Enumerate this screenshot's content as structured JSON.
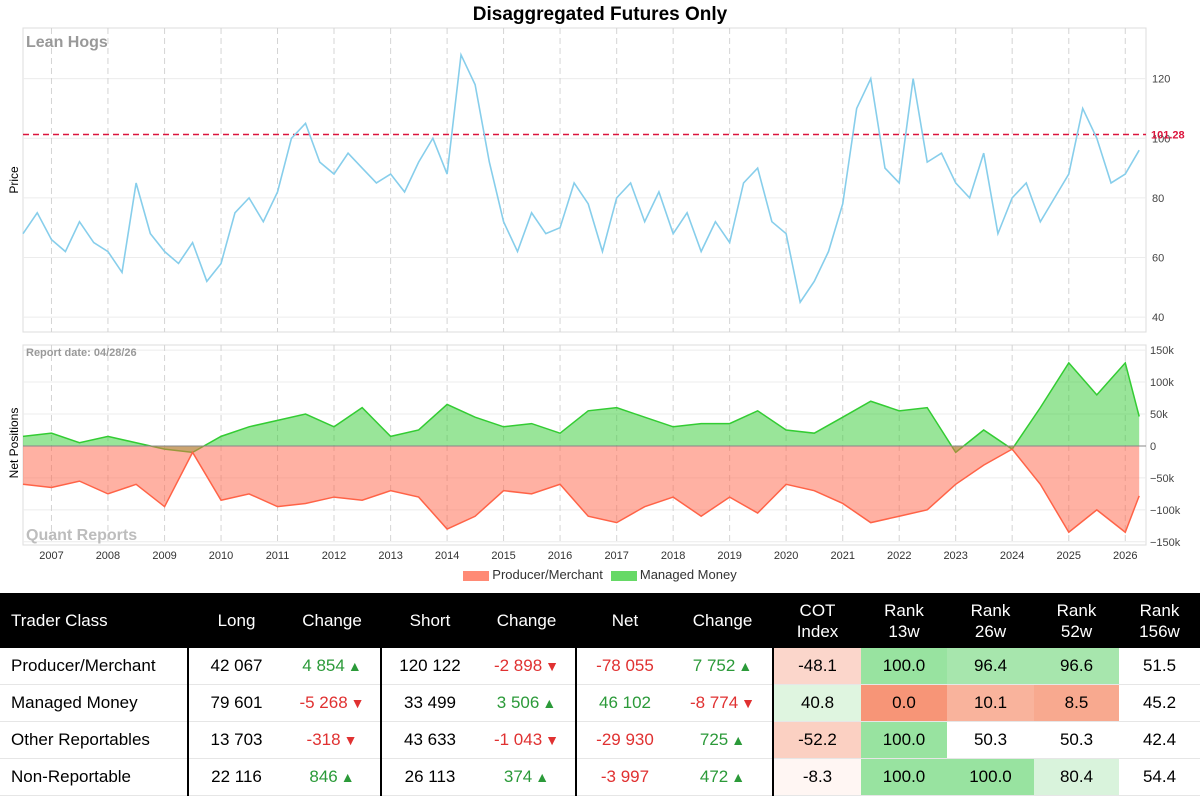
{
  "title": "Disaggregated Futures Only",
  "chart_data": [
    {
      "type": "line",
      "label": "Lean Hogs",
      "ylabel": "Price",
      "x_range": [
        "2006-07-01",
        "2026-05-15"
      ],
      "ylim": [
        35,
        137
      ],
      "y_ticks": [
        40,
        60,
        80,
        100,
        120
      ],
      "grid": true,
      "reference_line": {
        "value": 101.28,
        "label": "101.28",
        "color": "#dc143c",
        "style": "dashed"
      },
      "series": [
        {
          "color": "#87ceeb",
          "x": [
            "2006-07",
            "2006-10",
            "2007-01",
            "2007-04",
            "2007-07",
            "2007-10",
            "2008-01",
            "2008-04",
            "2008-07",
            "2008-10",
            "2009-01",
            "2009-04",
            "2009-07",
            "2009-10",
            "2010-01",
            "2010-04",
            "2010-07",
            "2010-10",
            "2011-01",
            "2011-04",
            "2011-07",
            "2011-10",
            "2012-01",
            "2012-04",
            "2012-07",
            "2012-10",
            "2013-01",
            "2013-04",
            "2013-07",
            "2013-10",
            "2014-01",
            "2014-04",
            "2014-07",
            "2014-10",
            "2015-01",
            "2015-04",
            "2015-07",
            "2015-10",
            "2016-01",
            "2016-04",
            "2016-07",
            "2016-10",
            "2017-01",
            "2017-04",
            "2017-07",
            "2017-10",
            "2018-01",
            "2018-04",
            "2018-07",
            "2018-10",
            "2019-01",
            "2019-04",
            "2019-07",
            "2019-10",
            "2020-01",
            "2020-04",
            "2020-07",
            "2020-10",
            "2021-01",
            "2021-04",
            "2021-07",
            "2021-10",
            "2022-01",
            "2022-04",
            "2022-07",
            "2022-10",
            "2023-01",
            "2023-04",
            "2023-07",
            "2023-10",
            "2024-01",
            "2024-04",
            "2024-07",
            "2024-10",
            "2025-01",
            "2025-04",
            "2025-07",
            "2025-10",
            "2026-01",
            "2026-04"
          ],
          "y": [
            68,
            75,
            66,
            62,
            72,
            65,
            62,
            55,
            85,
            68,
            62,
            58,
            65,
            52,
            58,
            75,
            80,
            72,
            82,
            100,
            105,
            92,
            88,
            95,
            90,
            85,
            88,
            82,
            92,
            100,
            88,
            128,
            118,
            92,
            72,
            62,
            75,
            68,
            70,
            85,
            78,
            62,
            80,
            85,
            72,
            82,
            68,
            75,
            62,
            72,
            65,
            85,
            90,
            72,
            68,
            45,
            52,
            62,
            78,
            110,
            120,
            90,
            85,
            120,
            92,
            95,
            85,
            80,
            95,
            68,
            80,
            85,
            72,
            80,
            88,
            110,
            100,
            85,
            88,
            96
          ]
        }
      ]
    },
    {
      "type": "area",
      "ylabel": "Net Positions",
      "annotation": "Report date: 04/28/26",
      "watermark": "Quant Reports",
      "x_range": [
        "2006-07-01",
        "2026-05-15"
      ],
      "x_ticks": [
        "2007",
        "2008",
        "2009",
        "2010",
        "2011",
        "2012",
        "2013",
        "2014",
        "2015",
        "2016",
        "2017",
        "2018",
        "2019",
        "2020",
        "2021",
        "2022",
        "2023",
        "2024",
        "2025",
        "2026"
      ],
      "ylim": [
        -155000,
        158000
      ],
      "y_ticks": [
        -150000,
        -100000,
        -50000,
        0,
        50000,
        100000,
        150000
      ],
      "y_tick_labels": [
        "−150k",
        "−100k",
        "−50k",
        "0",
        "50k",
        "100k",
        "150k"
      ],
      "grid": true,
      "legend_position": "bottom-center",
      "series": [
        {
          "name": "Managed Money",
          "color": "#33cc33",
          "x": [
            "2006-07",
            "2007-01",
            "2007-07",
            "2008-01",
            "2008-07",
            "2009-01",
            "2009-07",
            "2010-01",
            "2010-07",
            "2011-01",
            "2011-07",
            "2012-01",
            "2012-07",
            "2013-01",
            "2013-07",
            "2014-01",
            "2014-07",
            "2015-01",
            "2015-07",
            "2016-01",
            "2016-07",
            "2017-01",
            "2017-07",
            "2018-01",
            "2018-07",
            "2019-01",
            "2019-07",
            "2020-01",
            "2020-07",
            "2021-01",
            "2021-07",
            "2022-01",
            "2022-07",
            "2023-01",
            "2023-07",
            "2024-01",
            "2024-07",
            "2025-01",
            "2025-07",
            "2026-01",
            "2026-04"
          ],
          "y": [
            15000,
            20000,
            5000,
            15000,
            5000,
            -5000,
            -10000,
            15000,
            30000,
            40000,
            50000,
            30000,
            60000,
            15000,
            25000,
            65000,
            45000,
            30000,
            35000,
            20000,
            55000,
            60000,
            45000,
            30000,
            35000,
            35000,
            55000,
            25000,
            20000,
            45000,
            70000,
            55000,
            60000,
            -10000,
            25000,
            -5000,
            60000,
            130000,
            80000,
            130000,
            46102
          ]
        },
        {
          "name": "Producer/Merchant",
          "color": "#ff6347",
          "x": [
            "2006-07",
            "2007-01",
            "2007-07",
            "2008-01",
            "2008-07",
            "2009-01",
            "2009-07",
            "2010-01",
            "2010-07",
            "2011-01",
            "2011-07",
            "2012-01",
            "2012-07",
            "2013-01",
            "2013-07",
            "2014-01",
            "2014-07",
            "2015-01",
            "2015-07",
            "2016-01",
            "2016-07",
            "2017-01",
            "2017-07",
            "2018-01",
            "2018-07",
            "2019-01",
            "2019-07",
            "2020-01",
            "2020-07",
            "2021-01",
            "2021-07",
            "2022-01",
            "2022-07",
            "2023-01",
            "2023-07",
            "2024-01",
            "2024-07",
            "2025-01",
            "2025-07",
            "2026-01",
            "2026-04"
          ],
          "y": [
            -60000,
            -65000,
            -55000,
            -75000,
            -60000,
            -95000,
            -10000,
            -85000,
            -75000,
            -95000,
            -90000,
            -80000,
            -85000,
            -70000,
            -80000,
            -130000,
            -110000,
            -70000,
            -75000,
            -60000,
            -110000,
            -120000,
            -95000,
            -80000,
            -110000,
            -80000,
            -105000,
            -60000,
            -70000,
            -90000,
            -120000,
            -110000,
            -100000,
            -60000,
            -30000,
            -5000,
            -60000,
            -135000,
            -100000,
            -135000,
            -78055
          ]
        }
      ]
    }
  ],
  "legend": [
    {
      "name": "Producer/Merchant",
      "color": "#ff6347"
    },
    {
      "name": "Managed Money",
      "color": "#33cc33"
    }
  ],
  "table": {
    "headers": [
      "Trader Class",
      "Long",
      "Change",
      "Short",
      "Change",
      "Net",
      "Change",
      "COT\nIndex",
      "Rank\n13w",
      "Rank\n26w",
      "Rank\n52w",
      "Rank\n156w"
    ],
    "rows": [
      {
        "name": "Producer/Merchant",
        "long": "42 067",
        "long_chg": "4 854",
        "long_dir": "up",
        "short": "120 122",
        "short_chg": "-2 898",
        "short_dir": "down",
        "net": "-78 055",
        "net_chg": "7 752",
        "net_dir": "up",
        "cot": "-48.1",
        "r13": "100.0",
        "r26": "96.4",
        "r52": "96.6",
        "r156": "51.5",
        "bg": [
          "#fbd6cb",
          "#98e3a0",
          "#a7e6ad",
          "#a7e6ad",
          "#ffffff"
        ]
      },
      {
        "name": "Managed Money",
        "long": "79 601",
        "long_chg": "-5 268",
        "long_dir": "down",
        "short": "33 499",
        "short_chg": "3 506",
        "short_dir": "up",
        "net": "46 102",
        "net_chg": "-8 774",
        "net_dir": "down",
        "cot": "40.8",
        "r13": "0.0",
        "r26": "10.1",
        "r52": "8.5",
        "r156": "45.2",
        "bg": [
          "#dff5e0",
          "#f79577",
          "#f9b39c",
          "#f8a98f",
          "#ffffff"
        ]
      },
      {
        "name": "Other Reportables",
        "long": "13 703",
        "long_chg": "-318",
        "long_dir": "down",
        "short": "43 633",
        "short_chg": "-1 043",
        "short_dir": "down",
        "net": "-29 930",
        "net_chg": "725",
        "net_dir": "up",
        "cot": "-52.2",
        "r13": "100.0",
        "r26": "50.3",
        "r52": "50.3",
        "r156": "42.4",
        "bg": [
          "#fbd0c2",
          "#98e3a0",
          "#ffffff",
          "#ffffff",
          "#ffffff"
        ]
      },
      {
        "name": "Non-Reportable",
        "long": "22 116",
        "long_chg": "846",
        "long_dir": "up",
        "short": "26 113",
        "short_chg": "374",
        "short_dir": "up",
        "net": "-3 997",
        "net_chg": "472",
        "net_dir": "up",
        "cot": "-8.3",
        "r13": "100.0",
        "r26": "100.0",
        "r52": "80.4",
        "r156": "54.4",
        "bg": [
          "#fff6f3",
          "#98e3a0",
          "#98e3a0",
          "#d9f3dc",
          "#ffffff"
        ]
      }
    ]
  }
}
